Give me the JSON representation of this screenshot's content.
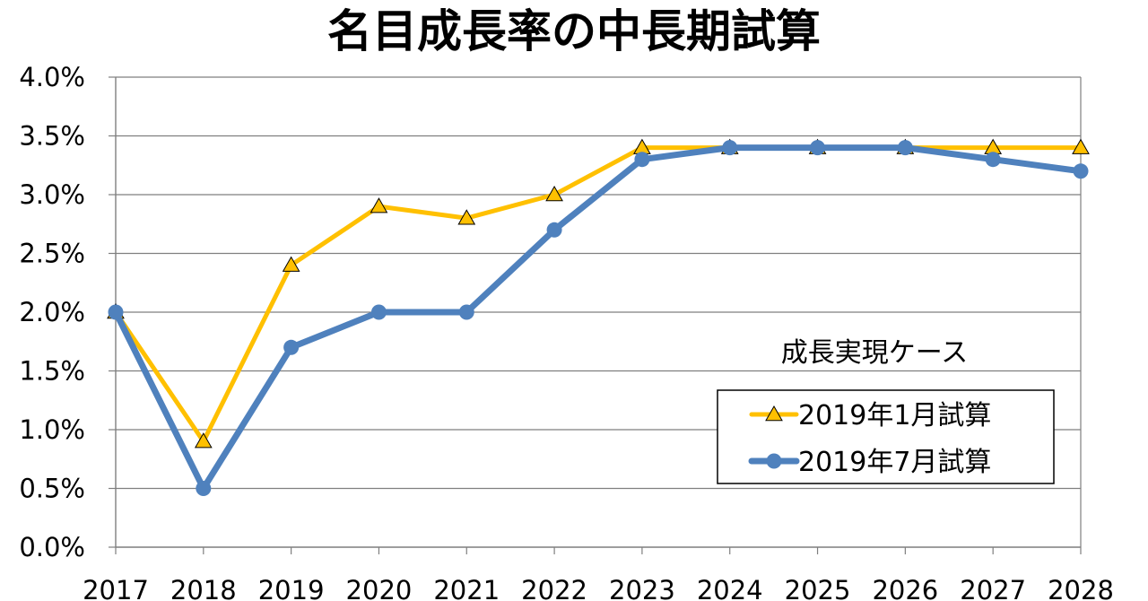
{
  "chart_data": {
    "type": "line",
    "title": "名目成長率の中長期試算",
    "categories": [
      "2017",
      "2018",
      "2019",
      "2020",
      "2021",
      "2022",
      "2023",
      "2024",
      "2025",
      "2026",
      "2027",
      "2028"
    ],
    "ylim": [
      0,
      4.0
    ],
    "y_ticks": [
      "0.0%",
      "0.5%",
      "1.0%",
      "1.5%",
      "2.0%",
      "2.5%",
      "3.0%",
      "3.5%",
      "4.0%"
    ],
    "grid": true,
    "legend_title": "成長実現ケース",
    "legend_position": "right",
    "series": [
      {
        "name": "2019年1月試算",
        "marker": "triangle",
        "color": "#FFC000",
        "values": [
          2.0,
          0.9,
          2.4,
          2.9,
          2.8,
          3.0,
          3.4,
          3.4,
          3.4,
          3.4,
          3.4,
          3.4
        ]
      },
      {
        "name": "2019年7月試算",
        "marker": "circle",
        "color": "#4F81BD",
        "values": [
          2.0,
          0.5,
          1.7,
          2.0,
          2.0,
          2.7,
          3.3,
          3.4,
          3.4,
          3.4,
          3.3,
          3.2
        ]
      }
    ]
  }
}
